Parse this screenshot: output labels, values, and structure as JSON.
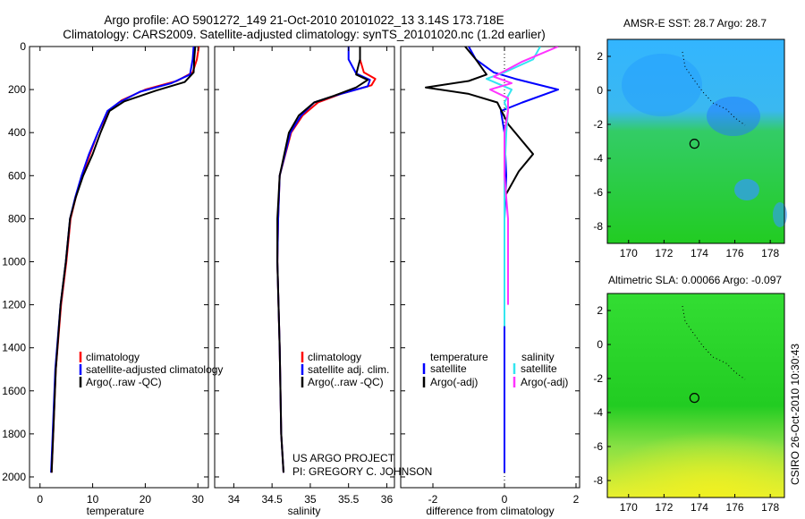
{
  "header": {
    "line1": "Argo profile: AO 5901272_149 21-Oct-2010 20101022_13 3.14S 173.718E",
    "line2": "Climatology: CARS2009. Satellite-adjusted climatology: synTS_20101020.nc (1.2d earlier)"
  },
  "credits": {
    "project": "US ARGO PROJECT",
    "pi": "PI: GREGORY C. JOHNSON",
    "stamp": "CSIRO 26-Oct-2010 10:30:43"
  },
  "colors": {
    "climatology": "#ff0000",
    "satellite": "#0000ff",
    "argo": "#000000",
    "sal_satellite": "#33e6f0",
    "sal_argo": "#ff33ff"
  },
  "chart_data": [
    {
      "id": "temperature",
      "type": "line",
      "xlabel": "temperature",
      "ylabel": "",
      "xlim": [
        -2,
        32
      ],
      "ylim": [
        2050,
        0
      ],
      "xticks": [
        "0",
        "10",
        "20",
        "30"
      ],
      "xtick_values": [
        0,
        10,
        20,
        30
      ],
      "yticks": [
        "0",
        "200",
        "400",
        "600",
        "800",
        "1000",
        "1200",
        "1400",
        "1600",
        "1800",
        "2000"
      ],
      "ytick_values": [
        0,
        200,
        400,
        600,
        800,
        1000,
        1200,
        1400,
        1600,
        1800,
        2000
      ],
      "legend": [
        "climatology",
        "satellite-adjusted climatology",
        "Argo(..raw -QC)"
      ],
      "series": [
        {
          "name": "climatology",
          "color": "#ff0000",
          "x": [
            30.2,
            29.8,
            29.0,
            26.0,
            20.0,
            15.5,
            13.0,
            11.0,
            9.5,
            8.0,
            6.8,
            5.8,
            5.0,
            4.0,
            3.0,
            2.5,
            2.2
          ],
          "y": [
            0,
            60,
            120,
            160,
            200,
            250,
            300,
            400,
            500,
            600,
            700,
            800,
            1000,
            1200,
            1500,
            1800,
            1980
          ]
        },
        {
          "name": "satellite-adjusted climatology",
          "color": "#0000ff",
          "x": [
            29.2,
            29.0,
            28.5,
            25.0,
            19.0,
            15.0,
            12.8,
            11.0,
            9.3,
            7.9,
            6.7,
            5.7,
            4.9,
            3.9,
            2.9,
            2.4,
            2.1
          ],
          "y": [
            0,
            60,
            130,
            170,
            210,
            260,
            300,
            400,
            500,
            600,
            700,
            800,
            1000,
            1200,
            1500,
            1800,
            1980
          ]
        },
        {
          "name": "Argo(..raw -QC)",
          "color": "#000000",
          "x": [
            29.5,
            29.3,
            29.2,
            27.5,
            22.0,
            16.0,
            13.2,
            11.5,
            10.0,
            8.2,
            6.8,
            5.7,
            4.9,
            3.9,
            3.0,
            2.5,
            2.2
          ],
          "y": [
            0,
            60,
            120,
            165,
            205,
            255,
            300,
            400,
            500,
            600,
            700,
            800,
            1000,
            1200,
            1500,
            1800,
            1980
          ]
        }
      ]
    },
    {
      "id": "salinity",
      "type": "line",
      "xlabel": "salinity",
      "ylabel": "",
      "xlim": [
        33.75,
        36.1
      ],
      "ylim": [
        2050,
        0
      ],
      "xticks": [
        "34",
        "34.5",
        "35",
        "35.5",
        "36"
      ],
      "xtick_values": [
        34,
        34.5,
        35,
        35.5,
        36
      ],
      "legend": [
        "climatology",
        "satellite adj. clim.",
        "Argo(..raw -QC)"
      ],
      "series": [
        {
          "name": "climatology",
          "color": "#ff0000",
          "x": [
            35.65,
            35.65,
            35.7,
            35.85,
            35.8,
            35.4,
            35.1,
            34.9,
            34.75,
            34.6,
            34.58,
            34.57,
            34.6,
            34.62,
            34.65
          ],
          "y": [
            0,
            60,
            120,
            150,
            180,
            220,
            260,
            320,
            400,
            600,
            800,
            1000,
            1400,
            1800,
            1980
          ]
        },
        {
          "name": "satellite adj. clim.",
          "color": "#0000ff",
          "x": [
            35.5,
            35.5,
            35.6,
            35.78,
            35.75,
            35.35,
            35.05,
            34.88,
            34.74,
            34.6,
            34.58,
            34.57,
            34.6,
            34.62,
            34.65
          ],
          "y": [
            0,
            60,
            125,
            155,
            185,
            225,
            260,
            320,
            400,
            600,
            800,
            1000,
            1400,
            1800,
            1980
          ]
        },
        {
          "name": "Argo(..raw -QC)",
          "color": "#000000",
          "x": [
            35.65,
            35.65,
            35.6,
            35.75,
            35.6,
            35.3,
            35.05,
            34.85,
            34.72,
            34.6,
            34.57,
            34.57,
            34.6,
            34.62,
            34.65
          ],
          "y": [
            0,
            60,
            130,
            155,
            190,
            230,
            260,
            320,
            400,
            600,
            800,
            1000,
            1400,
            1800,
            1980
          ]
        }
      ]
    },
    {
      "id": "difference",
      "type": "line",
      "xlabel": "difference from climatology",
      "ylabel": "",
      "xlim": [
        -2.9,
        2.1
      ],
      "ylim": [
        2050,
        0
      ],
      "xticks": [
        "-2",
        "0",
        "2"
      ],
      "xtick_values": [
        -2,
        0,
        2
      ],
      "legend_headers": [
        "temperature",
        "salinity"
      ],
      "legend": [
        "satellite",
        "Argo(-adj)",
        "satellite",
        "Argo(-adj)"
      ],
      "series": [
        {
          "name": "temperature satellite",
          "color": "#0000ff",
          "x": [
            -1.0,
            -0.8,
            -0.3,
            0.3,
            1.5,
            0.5,
            -0.1,
            0.0,
            0.05,
            0.0,
            0.0,
            0.0,
            0.0
          ],
          "y": [
            0,
            60,
            120,
            150,
            200,
            260,
            300,
            400,
            600,
            800,
            1200,
            1600,
            1980
          ]
        },
        {
          "name": "temperature Argo(-adj)",
          "color": "#000000",
          "x": [
            -1.1,
            -0.8,
            -0.5,
            -1.0,
            -2.2,
            -1.0,
            -0.2,
            0.1,
            0.8,
            0.4,
            0.0,
            0.0,
            0.0
          ],
          "y": [
            0,
            60,
            130,
            160,
            190,
            220,
            260,
            360,
            500,
            580,
            700,
            1100,
            1300
          ]
        },
        {
          "name": "salinity satellite",
          "color": "#33e6f0",
          "x": [
            1.0,
            0.8,
            0.0,
            -0.5,
            0.2,
            0.0,
            0.1,
            0.05,
            0.0,
            0.0,
            0.0,
            0.0
          ],
          "y": [
            0,
            60,
            120,
            150,
            200,
            260,
            300,
            400,
            600,
            800,
            1200,
            1300
          ]
        },
        {
          "name": "salinity Argo(-adj)",
          "color": "#ff33ff",
          "x": [
            1.5,
            0.5,
            -0.3,
            0.2,
            -0.4,
            0.1,
            0.1,
            0.0,
            0.0,
            0.1,
            0.1
          ],
          "y": [
            0,
            70,
            140,
            170,
            200,
            240,
            300,
            400,
            600,
            800,
            1200
          ]
        }
      ],
      "zero_line": 0
    },
    {
      "id": "sst",
      "type": "heatmap",
      "title": "AMSR-E SST: 28.7 Argo: 28.7",
      "xlim": [
        168.8,
        178.8
      ],
      "ylim": [
        -9,
        3
      ],
      "xticks": [
        "170",
        "172",
        "174",
        "176",
        "178"
      ],
      "xtick_values": [
        170,
        172,
        174,
        176,
        178
      ],
      "yticks": [
        "2",
        "0",
        "-2",
        "-4",
        "-6",
        "-8"
      ],
      "ytick_values": [
        2,
        0,
        -2,
        -4,
        -6,
        -8
      ],
      "profile_location": {
        "lon": 173.718,
        "lat": -3.14
      }
    },
    {
      "id": "sla",
      "type": "heatmap",
      "title": "Altimetric SLA: 0.00066 Argo: -0.097",
      "xlim": [
        168.8,
        178.8
      ],
      "ylim": [
        -9,
        3
      ],
      "xticks": [
        "170",
        "172",
        "174",
        "176",
        "178"
      ],
      "xtick_values": [
        170,
        172,
        174,
        176,
        178
      ],
      "yticks": [
        "2",
        "0",
        "-2",
        "-4",
        "-6",
        "-8"
      ],
      "ytick_values": [
        2,
        0,
        -2,
        -4,
        -6,
        -8
      ],
      "profile_location": {
        "lon": 173.718,
        "lat": -3.14
      }
    }
  ]
}
